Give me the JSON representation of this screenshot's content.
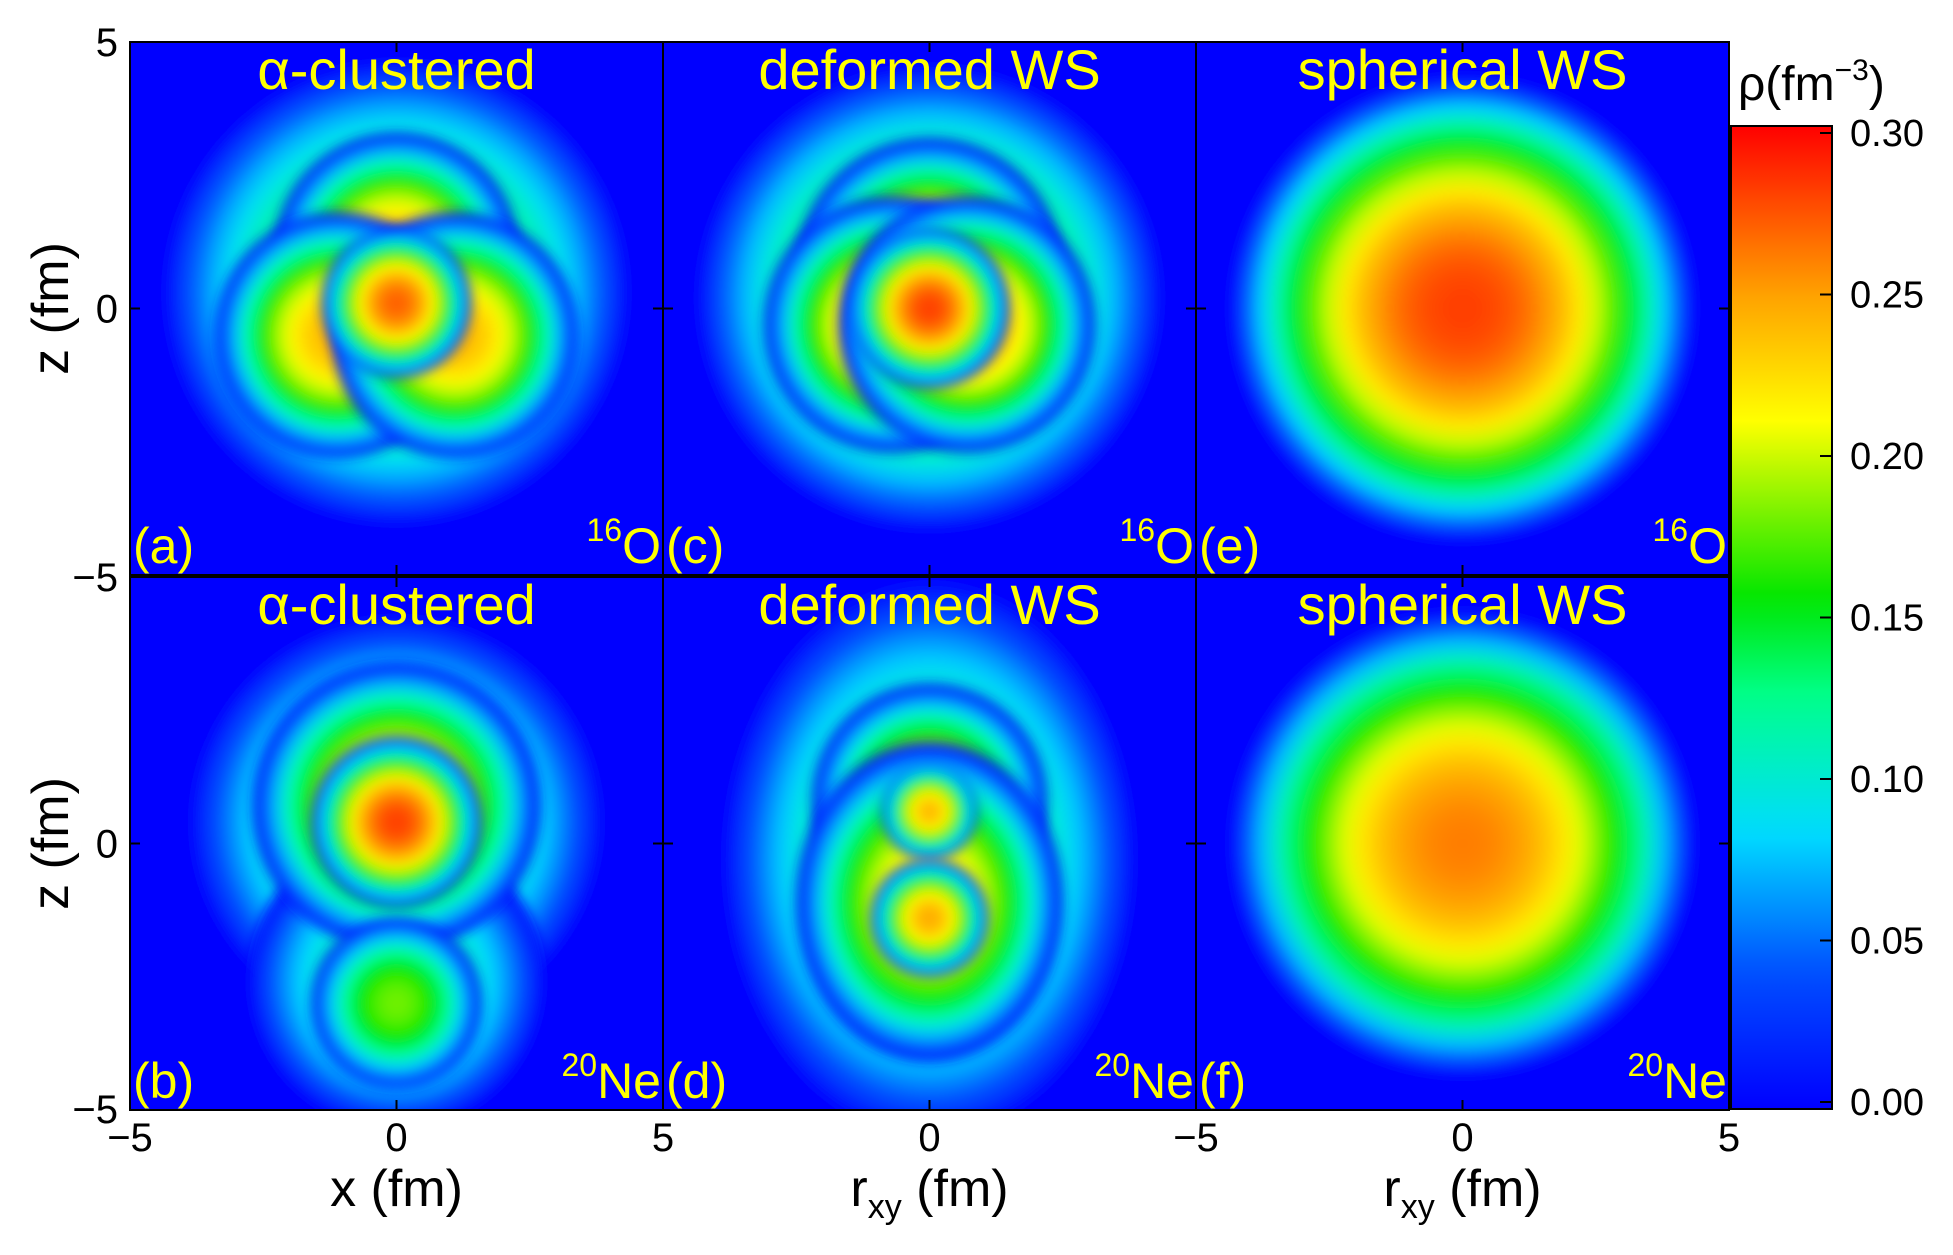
{
  "chart_data": {
    "type": "heatmap",
    "description_quantity": "density",
    "colorbar": {
      "title": "ρ(fm",
      "title_exponent": "−3",
      "title_close": ")",
      "range": [
        0.0,
        0.3
      ],
      "ticks": [
        0.3,
        0.25,
        0.2,
        0.15,
        0.1,
        0.05,
        0.0
      ],
      "tick_labels": [
        "0.30",
        "0.25",
        "0.20",
        "0.15",
        "0.10",
        "0.05",
        "0.00"
      ],
      "colors": [
        "#0000ff",
        "#0060ff",
        "#00e8ff",
        "#00ff80",
        "#00e000",
        "#ffff00",
        "#ffa000",
        "#ff0000"
      ]
    },
    "x_axis": {
      "range": [
        -5,
        5
      ],
      "labels": [
        {
          "main": "x (fm)",
          "sub": ""
        },
        {
          "main": "r",
          "sub": "xy",
          "rest": " (fm)"
        },
        {
          "main": "r",
          "sub": "xy",
          "rest": " (fm)"
        }
      ],
      "tick_labels": [
        [
          "−5",
          "0",
          "5"
        ],
        [
          "0"
        ],
        [
          "−5",
          "0",
          "5"
        ]
      ]
    },
    "y_axis": {
      "range": [
        -5,
        5
      ],
      "label": "z (fm)",
      "top_tick_labels": [
        "5",
        "0",
        "−5"
      ],
      "bottom_tick_labels": [
        "0",
        "−5"
      ]
    },
    "panels": [
      {
        "id": "a",
        "label": "(a)",
        "title": "α-clustered",
        "nucleus_mass": "16",
        "nucleus_symbol": "O",
        "shape": "triangle-3-alpha",
        "peak_density": 0.29
      },
      {
        "id": "c",
        "label": "(c)",
        "title": "deformed WS",
        "nucleus_mass": "16",
        "nucleus_symbol": "O",
        "shape": "triangle-deformed",
        "peak_density": 0.29
      },
      {
        "id": "e",
        "label": "(e)",
        "title": "spherical WS",
        "nucleus_mass": "16",
        "nucleus_symbol": "O",
        "shape": "sphere",
        "peak_density": 0.28
      },
      {
        "id": "b",
        "label": "(b)",
        "title": "α-clustered",
        "nucleus_mass": "20",
        "nucleus_symbol": "Ne",
        "shape": "tetrahedron-plus-alpha",
        "peak_density": 0.29
      },
      {
        "id": "d",
        "label": "(d)",
        "title": "deformed WS",
        "nucleus_mass": "20",
        "nucleus_symbol": "Ne",
        "shape": "prolate-octupole",
        "peak_density": 0.26
      },
      {
        "id": "f",
        "label": "(f)",
        "title": "spherical WS",
        "nucleus_mass": "20",
        "nucleus_symbol": "Ne",
        "shape": "sphere",
        "peak_density": 0.26
      }
    ]
  }
}
